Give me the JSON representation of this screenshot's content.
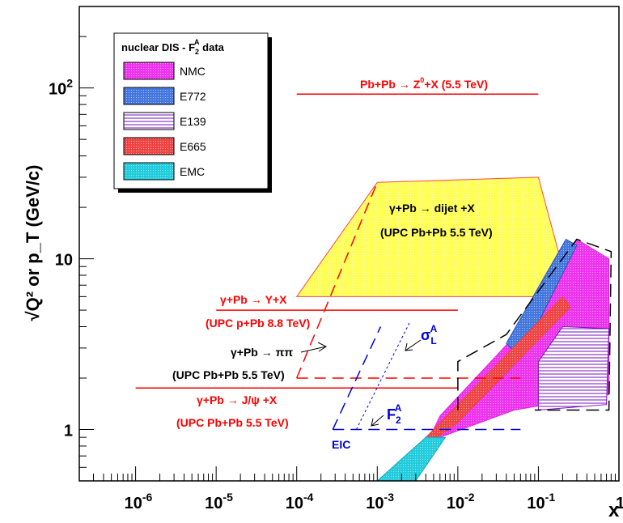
{
  "chart_data": {
    "type": "area",
    "xlabel": "x",
    "ylabel": "√Q² or p_T (GeV/c)",
    "xscale": "log",
    "yscale": "log",
    "xlim": [
      2e-07,
      1
    ],
    "ylim": [
      0.5,
      300
    ],
    "x_ticks": [
      {
        "base": "10",
        "exp": "-6"
      },
      {
        "base": "10",
        "exp": "-5"
      },
      {
        "base": "10",
        "exp": "-4"
      },
      {
        "base": "10",
        "exp": "-3"
      },
      {
        "base": "10",
        "exp": "-2"
      },
      {
        "base": "10",
        "exp": "-1"
      },
      {
        "base": "1",
        "exp": ""
      }
    ],
    "y_ticks": [
      {
        "base": "1",
        "exp": ""
      },
      {
        "base": "10",
        "exp": ""
      },
      {
        "base": "10",
        "exp": "2"
      }
    ],
    "legend": {
      "title": "nuclear DIS - F",
      "title_sub": "2",
      "title_sup": "A",
      "title_end": " data",
      "placement": "top-left",
      "entries": [
        {
          "label": "NMC",
          "color": "#ee33ee",
          "pattern": "dots"
        },
        {
          "label": "E772",
          "color": "#4477dd",
          "pattern": "dots"
        },
        {
          "label": "E139",
          "color": "#7711bb",
          "pattern": "hlines"
        },
        {
          "label": "E665",
          "color": "#ee4444",
          "pattern": "dots"
        },
        {
          "label": "EMC",
          "color": "#22ccdd",
          "pattern": "dots"
        }
      ]
    },
    "regions": [
      {
        "name": "NMC",
        "color": "#ee33ee",
        "points": [
          [
            0.003,
            0.6
          ],
          [
            0.006,
            0.9
          ],
          [
            0.05,
            1.3
          ],
          [
            0.3,
            1.5
          ],
          [
            0.75,
            1.6
          ],
          [
            0.75,
            10
          ],
          [
            0.3,
            13
          ],
          [
            0.12,
            7
          ],
          [
            0.05,
            3.5
          ],
          [
            0.02,
            2.2
          ],
          [
            0.006,
            1.2
          ]
        ]
      },
      {
        "name": "E772",
        "color": "#4477dd",
        "points": [
          [
            0.04,
            3.2
          ],
          [
            0.06,
            2.6
          ],
          [
            0.3,
            12
          ],
          [
            0.22,
            13
          ]
        ]
      },
      {
        "name": "E139",
        "color": "#7711bb",
        "points": [
          [
            0.1,
            1.3
          ],
          [
            0.7,
            1.4
          ],
          [
            0.75,
            3.9
          ],
          [
            0.2,
            4
          ],
          [
            0.1,
            2.5
          ]
        ]
      },
      {
        "name": "E665",
        "color": "#ee4444",
        "points": [
          [
            0.0005,
            0.5
          ],
          [
            0.0012,
            0.5
          ],
          [
            0.01,
            1.4
          ],
          [
            0.2,
            6
          ],
          [
            0.25,
            5.2
          ],
          [
            0.01,
            1.1
          ],
          [
            0.001,
            0.5
          ]
        ]
      },
      {
        "name": "EMC",
        "color": "#22ccdd",
        "points": [
          [
            0.001,
            0.5
          ],
          [
            0.003,
            0.5
          ],
          [
            0.007,
            0.9
          ],
          [
            0.004,
            0.9
          ]
        ]
      },
      {
        "name": "dijet",
        "color": "#ffff66",
        "points": [
          [
            0.0001,
            6
          ],
          [
            0.001,
            28
          ],
          [
            0.1,
            30
          ],
          [
            0.25,
            6
          ]
        ]
      }
    ],
    "lines": [
      {
        "name": "Z0",
        "color": "#ff0000",
        "points": [
          [
            0.0001,
            92
          ],
          [
            0.1,
            92
          ]
        ]
      },
      {
        "name": "Upsilon",
        "color": "#ff0000",
        "points": [
          [
            1e-05,
            5
          ],
          [
            0.01,
            5
          ]
        ]
      },
      {
        "name": "Jpsi",
        "color": "#ff0000",
        "points": [
          [
            1e-06,
            1.75
          ],
          [
            0.01,
            1.75
          ]
        ]
      },
      {
        "name": "pipi-h",
        "color": "#ff0000",
        "dash": "14 8",
        "points": [
          [
            0.0001,
            2
          ],
          [
            0.06,
            2
          ]
        ]
      },
      {
        "name": "pipi-slope",
        "color": "#ff0000",
        "dash": "14 8",
        "points": [
          [
            0.0001,
            2
          ],
          [
            0.001,
            28
          ]
        ]
      },
      {
        "name": "EIC-base",
        "color": "#0000dd",
        "dash": "14 8",
        "points": [
          [
            0.00028,
            1
          ],
          [
            0.06,
            1
          ]
        ]
      },
      {
        "name": "EIC-slope",
        "color": "#0000dd",
        "dash": "14 8",
        "points": [
          [
            0.00028,
            1
          ],
          [
            0.0011,
            4
          ]
        ]
      },
      {
        "name": "sigmaL-slope",
        "color": "#0000dd",
        "dash": "3 3",
        "points": [
          [
            0.00055,
            1
          ],
          [
            0.0025,
            4.2
          ]
        ]
      },
      {
        "name": "nmc-outline",
        "color": "#000000",
        "dash": "16 8",
        "points": [
          [
            0.01,
            1.3
          ],
          [
            0.01,
            2.5
          ],
          [
            0.04,
            3.6
          ],
          [
            0.3,
            13
          ],
          [
            0.8,
            11
          ],
          [
            0.75,
            1.3
          ],
          [
            0.09,
            1.3
          ]
        ]
      }
    ],
    "annotations": [
      {
        "text": "Pb+Pb → Z",
        "sup": "0",
        "tail": "+X (5.5 TeV)",
        "color": "#ff0000",
        "x": 0.0025,
        "y": 115
      },
      {
        "text": "γ+Pb → dijet +X",
        "color": "#000000",
        "x": 0.005,
        "y": 14.5
      },
      {
        "text": "(UPC Pb+Pb 5.5 TeV)",
        "color": "#000000",
        "x": 0.005,
        "y": 10.5
      },
      {
        "text": "γ+Pb → Υ+X",
        "color": "#ff0000",
        "x": 3e-05,
        "y": 6.2
      },
      {
        "text": "(UPC p+Pb 8.8 TeV)",
        "color": "#ff0000",
        "x": 3e-05,
        "y": 4.4
      },
      {
        "text": "γ+Pb → ππ",
        "color": "#000000",
        "x": 3e-05,
        "y": 2.9
      },
      {
        "text": "(UPC Pb+Pb 5.5 TeV)",
        "color": "#000000",
        "x": 3e-05,
        "y": 2.1
      },
      {
        "text": "γ+Pb → J/ψ +X",
        "color": "#ff0000",
        "x": 3e-05,
        "y": 1.42
      },
      {
        "text": "(UPC Pb+Pb 5.5 TeV)",
        "color": "#ff0000",
        "x": 3e-05,
        "y": 1.03
      },
      {
        "text": "EIC",
        "color": "#0000dd",
        "x": 0.00037,
        "y": 0.8
      }
    ],
    "math_labels": {
      "sigma": "σ",
      "sigma_sub": "L",
      "sigma_sup": "A",
      "f": "F",
      "f_sub": "2",
      "f_sup": "A"
    }
  }
}
